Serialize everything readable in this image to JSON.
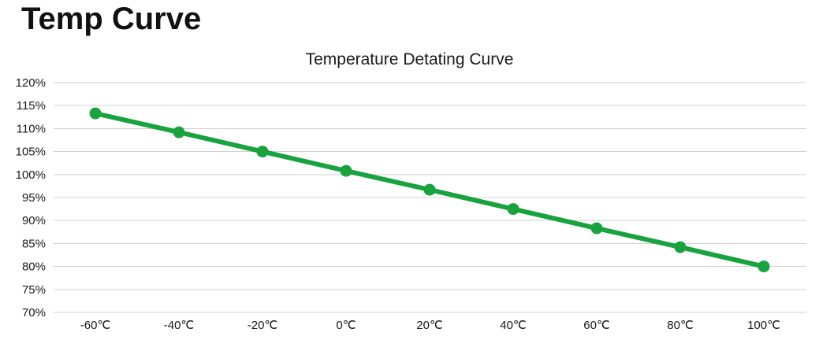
{
  "page": {
    "heading": "Temp Curve"
  },
  "chart_data": {
    "type": "line",
    "title": "Temperature Detating Curve",
    "categories": [
      "-60℃",
      "-40℃",
      "-20℃",
      "0℃",
      "20℃",
      "40℃",
      "60℃",
      "80℃",
      "100℃"
    ],
    "x_values_celsius": [
      -60,
      -40,
      -20,
      0,
      20,
      40,
      60,
      80,
      100
    ],
    "series": [
      {
        "name": "Temperature Detating Curve",
        "values": [
          113.3,
          109.2,
          105.0,
          100.8,
          96.7,
          92.5,
          88.3,
          84.2,
          80.0
        ]
      }
    ],
    "ylim": [
      70,
      120
    ],
    "yticks": [
      120,
      115,
      110,
      105,
      100,
      95,
      90,
      85,
      80,
      75,
      70
    ],
    "ytick_labels": [
      "120%",
      "115%",
      "110%",
      "105%",
      "100%",
      "95%",
      "90%",
      "85%",
      "80%",
      "75%",
      "70%"
    ],
    "xlabel": "",
    "ylabel": "",
    "grid": "horizontal",
    "legend": "none",
    "colors": {
      "line": "#18A33F",
      "marker": "#18A33F",
      "gridline": "#D0D0D0",
      "text": "#1A1A1A",
      "background": "#FFFFFF"
    }
  }
}
